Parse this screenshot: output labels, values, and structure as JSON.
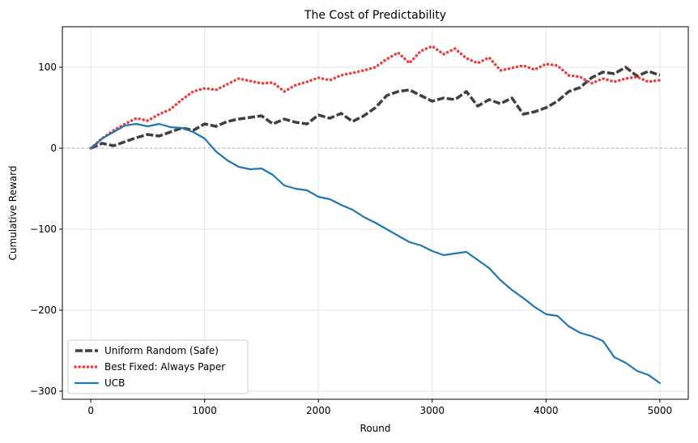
{
  "chart_data": {
    "type": "line",
    "title": "The Cost of Predictability",
    "xlabel": "Round",
    "ylabel": "Cumulative Reward",
    "xlim": [
      -250,
      5250
    ],
    "ylim": [
      -310,
      150
    ],
    "xticks": [
      0,
      1000,
      2000,
      3000,
      4000,
      5000
    ],
    "yticks": [
      -300,
      -200,
      -100,
      0,
      100
    ],
    "ytick_labels": [
      "−300",
      "−200",
      "−100",
      "0",
      "100"
    ],
    "grid": true,
    "zero_reference_line": true,
    "legend_position": "lower-left",
    "series": [
      {
        "name": "Uniform Random (Safe)",
        "color": "#3f3f3f",
        "style": "dashed",
        "x": [
          0,
          100,
          200,
          300,
          400,
          500,
          600,
          700,
          800,
          900,
          1000,
          1100,
          1200,
          1300,
          1400,
          1500,
          1600,
          1700,
          1800,
          1900,
          2000,
          2100,
          2200,
          2300,
          2400,
          2500,
          2600,
          2700,
          2800,
          2900,
          3000,
          3100,
          3200,
          3300,
          3400,
          3500,
          3600,
          3700,
          3800,
          3900,
          4000,
          4100,
          4200,
          4300,
          4400,
          4500,
          4600,
          4700,
          4800,
          4900,
          5000
        ],
        "y": [
          0,
          6,
          3,
          8,
          13,
          17,
          15,
          20,
          25,
          22,
          30,
          27,
          33,
          36,
          38,
          40,
          30,
          36,
          32,
          30,
          41,
          37,
          43,
          33,
          40,
          50,
          65,
          70,
          72,
          65,
          58,
          62,
          60,
          70,
          52,
          60,
          55,
          62,
          42,
          45,
          50,
          58,
          70,
          75,
          87,
          94,
          92,
          100,
          89,
          95,
          90
        ]
      },
      {
        "name": "Best Fixed: Always Paper",
        "color": "#f03c3c",
        "style": "dotted",
        "x": [
          0,
          100,
          200,
          300,
          400,
          500,
          600,
          700,
          800,
          900,
          1000,
          1100,
          1200,
          1300,
          1400,
          1500,
          1600,
          1700,
          1800,
          1900,
          2000,
          2100,
          2200,
          2300,
          2400,
          2500,
          2600,
          2700,
          2800,
          2900,
          3000,
          3100,
          3200,
          3300,
          3400,
          3500,
          3600,
          3700,
          3800,
          3900,
          4000,
          4100,
          4200,
          4300,
          4400,
          4500,
          4600,
          4700,
          4800,
          4900,
          5000
        ],
        "y": [
          0,
          12,
          22,
          30,
          37,
          34,
          42,
          48,
          60,
          70,
          74,
          72,
          79,
          86,
          83,
          80,
          81,
          70,
          78,
          82,
          87,
          84,
          90,
          93,
          96,
          100,
          110,
          118,
          105,
          120,
          126,
          116,
          123,
          111,
          105,
          112,
          96,
          99,
          102,
          97,
          104,
          102,
          90,
          88,
          80,
          86,
          82,
          86,
          88,
          82,
          84
        ]
      },
      {
        "name": "UCB",
        "color": "#1f77b4",
        "style": "solid",
        "x": [
          0,
          100,
          200,
          300,
          400,
          500,
          600,
          700,
          800,
          900,
          1000,
          1100,
          1200,
          1300,
          1400,
          1500,
          1600,
          1700,
          1800,
          1900,
          2000,
          2100,
          2200,
          2300,
          2400,
          2500,
          2600,
          2700,
          2800,
          2900,
          3000,
          3100,
          3200,
          3300,
          3400,
          3500,
          3600,
          3700,
          3800,
          3900,
          4000,
          4100,
          4200,
          4300,
          4400,
          4500,
          4600,
          4700,
          4800,
          4900,
          5000
        ],
        "y": [
          0,
          12,
          20,
          28,
          30,
          27,
          30,
          26,
          25,
          20,
          12,
          -4,
          -15,
          -23,
          -26,
          -25,
          -33,
          -46,
          -50,
          -52,
          -60,
          -63,
          -70,
          -76,
          -85,
          -92,
          -100,
          -108,
          -116,
          -120,
          -127,
          -132,
          -130,
          -128,
          -138,
          -148,
          -163,
          -175,
          -185,
          -196,
          -205,
          -207,
          -220,
          -228,
          -232,
          -238,
          -258,
          -265,
          -275,
          -280,
          -290
        ]
      }
    ]
  }
}
